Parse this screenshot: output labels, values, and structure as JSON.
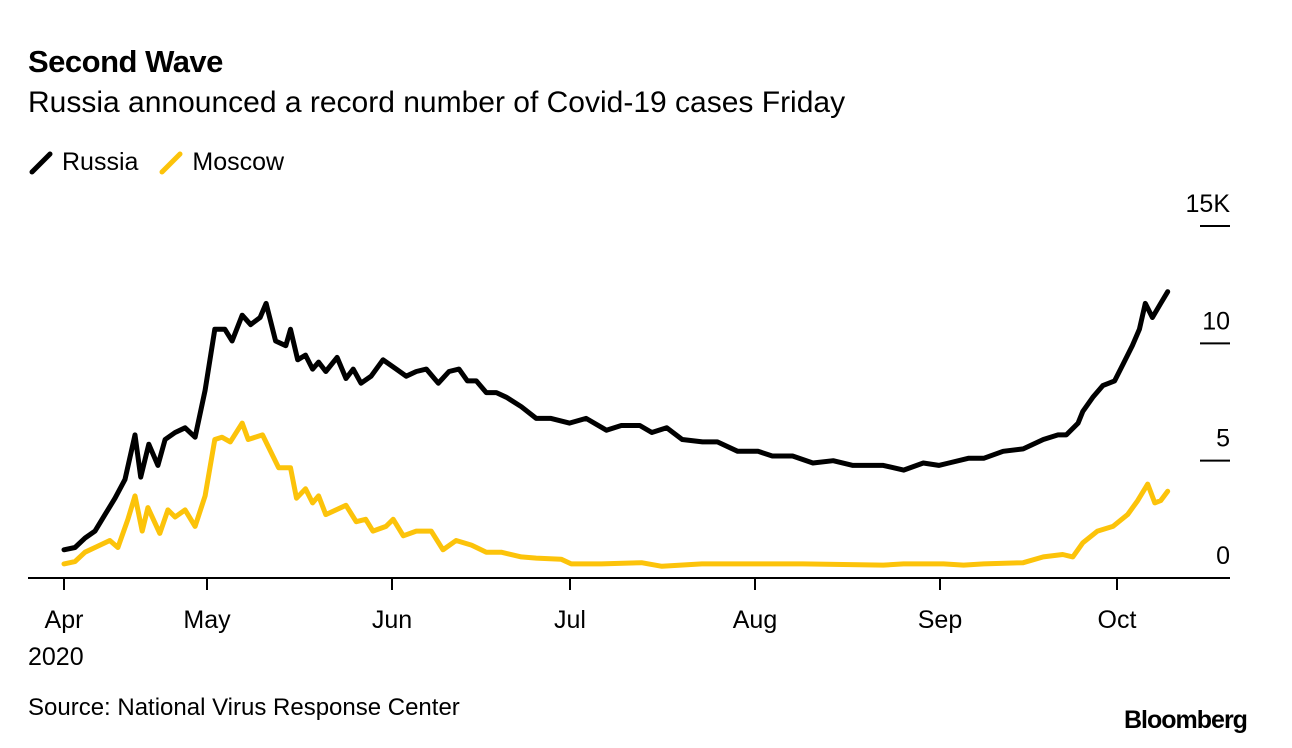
{
  "header": {
    "title": "Second Wave",
    "subtitle": "Russia announced a record number of Covid-19 cases Friday"
  },
  "footer": {
    "source": "Source: National Virus Response Center",
    "logo": "Bloomberg"
  },
  "colors": {
    "russia": "#000000",
    "moscow": "#fcc30a",
    "axis": "#000000"
  },
  "chart_data": {
    "type": "line",
    "title": "Second Wave",
    "subtitle": "Russia announced a record number of Covid-19 cases Friday",
    "x_unit": "days since Apr 1, 2020",
    "xlabel": "",
    "ylabel": "",
    "ylim": [
      0,
      15
    ],
    "y_ticks": [
      {
        "value": 15,
        "label": "15K"
      },
      {
        "value": 10,
        "label": "10"
      },
      {
        "value": 5,
        "label": "5"
      },
      {
        "value": 0,
        "label": "0"
      }
    ],
    "x_ticks": [
      {
        "day": 0,
        "label": "Apr",
        "sublabel": "2020"
      },
      {
        "day": 30,
        "label": "May"
      },
      {
        "day": 61,
        "label": "Jun"
      },
      {
        "day": 91,
        "label": "Jul"
      },
      {
        "day": 122,
        "label": "Aug"
      },
      {
        "day": 153,
        "label": "Sep"
      },
      {
        "day": 183,
        "label": "Oct"
      }
    ],
    "legend": {
      "position": "top-left"
    },
    "series": [
      {
        "name": "Russia",
        "color": "#000000",
        "points": [
          [
            0,
            1.2
          ],
          [
            2.3,
            1.3
          ],
          [
            4.4,
            1.7
          ],
          [
            6.5,
            2.0
          ],
          [
            8.6,
            2.7
          ],
          [
            10.7,
            3.4
          ],
          [
            12.8,
            4.2
          ],
          [
            14.9,
            6.1
          ],
          [
            16.1,
            4.3
          ],
          [
            17.8,
            5.7
          ],
          [
            19.7,
            4.8
          ],
          [
            21.2,
            5.9
          ],
          [
            23.3,
            6.2
          ],
          [
            25.4,
            6.4
          ],
          [
            27.5,
            6.0
          ],
          [
            29.6,
            8.0
          ],
          [
            31.3,
            10.6
          ],
          [
            33,
            10.6
          ],
          [
            34.2,
            10.1
          ],
          [
            35.9,
            11.2
          ],
          [
            37.3,
            10.8
          ],
          [
            38.9,
            11.1
          ],
          [
            39.9,
            11.7
          ],
          [
            41.5,
            10.1
          ],
          [
            43.2,
            9.9
          ],
          [
            44,
            10.6
          ],
          [
            45.2,
            9.3
          ],
          [
            46.5,
            9.5
          ],
          [
            47.7,
            8.9
          ],
          [
            48.7,
            9.2
          ],
          [
            49.9,
            8.8
          ],
          [
            51.8,
            9.4
          ],
          [
            53.3,
            8.5
          ],
          [
            54.5,
            8.9
          ],
          [
            55.8,
            8.3
          ],
          [
            57.5,
            8.6
          ],
          [
            59.5,
            9.3
          ],
          [
            61.7,
            8.9
          ],
          [
            63.4,
            8.6
          ],
          [
            65.1,
            8.8
          ],
          [
            66.8,
            8.9
          ],
          [
            68.8,
            8.3
          ],
          [
            70.6,
            8.8
          ],
          [
            72.3,
            8.9
          ],
          [
            73.7,
            8.4
          ],
          [
            75.2,
            8.4
          ],
          [
            76.9,
            7.9
          ],
          [
            78.6,
            7.9
          ],
          [
            80.3,
            7.7
          ],
          [
            82.8,
            7.3
          ],
          [
            85.3,
            6.8
          ],
          [
            87.8,
            6.8
          ],
          [
            90.9,
            6.6
          ],
          [
            93.7,
            6.8
          ],
          [
            97.1,
            6.3
          ],
          [
            99.6,
            6.5
          ],
          [
            102.7,
            6.5
          ],
          [
            104.7,
            6.2
          ],
          [
            107.2,
            6.4
          ],
          [
            109.8,
            5.9
          ],
          [
            113.2,
            5.8
          ],
          [
            115.7,
            5.8
          ],
          [
            119.1,
            5.4
          ],
          [
            122.5,
            5.4
          ],
          [
            124.9,
            5.2
          ],
          [
            128.3,
            5.2
          ],
          [
            131.7,
            4.9
          ],
          [
            135.1,
            5.0
          ],
          [
            138.4,
            4.8
          ],
          [
            140.1,
            4.8
          ],
          [
            143.5,
            4.8
          ],
          [
            146.9,
            4.6
          ],
          [
            150.2,
            4.9
          ],
          [
            152.8,
            4.8
          ],
          [
            154.5,
            4.9
          ],
          [
            157.8,
            5.1
          ],
          [
            160.4,
            5.1
          ],
          [
            163.7,
            5.4
          ],
          [
            167.1,
            5.5
          ],
          [
            170.5,
            5.9
          ],
          [
            173,
            6.1
          ],
          [
            174.4,
            6.1
          ],
          [
            176.4,
            6.6
          ],
          [
            177.2,
            7.1
          ],
          [
            178.9,
            7.7
          ],
          [
            180.6,
            8.2
          ],
          [
            182.6,
            8.4
          ],
          [
            184,
            9.1
          ],
          [
            185.6,
            9.9
          ],
          [
            186.8,
            10.6
          ],
          [
            187.8,
            11.7
          ],
          [
            189,
            11.1
          ],
          [
            190.4,
            11.7
          ],
          [
            191.6,
            12.2
          ]
        ]
      },
      {
        "name": "Moscow",
        "color": "#fcc30a",
        "points": [
          [
            0,
            0.6
          ],
          [
            2.3,
            0.7
          ],
          [
            4.4,
            1.1
          ],
          [
            6.5,
            1.3
          ],
          [
            9.6,
            1.6
          ],
          [
            11.3,
            1.3
          ],
          [
            13.4,
            2.5
          ],
          [
            14.9,
            3.5
          ],
          [
            16.4,
            2.0
          ],
          [
            17.6,
            3.0
          ],
          [
            20.1,
            1.9
          ],
          [
            21.8,
            2.9
          ],
          [
            23.3,
            2.6
          ],
          [
            25.4,
            2.9
          ],
          [
            27.5,
            2.2
          ],
          [
            29.6,
            3.5
          ],
          [
            31.3,
            5.9
          ],
          [
            32.5,
            6.0
          ],
          [
            33.9,
            5.8
          ],
          [
            35.9,
            6.6
          ],
          [
            36.9,
            5.9
          ],
          [
            39.3,
            6.1
          ],
          [
            42,
            4.7
          ],
          [
            44,
            4.7
          ],
          [
            45,
            3.4
          ],
          [
            46.5,
            3.8
          ],
          [
            47.7,
            3.2
          ],
          [
            48.7,
            3.5
          ],
          [
            49.9,
            2.7
          ],
          [
            53.3,
            3.1
          ],
          [
            55,
            2.4
          ],
          [
            56.6,
            2.5
          ],
          [
            57.8,
            2.0
          ],
          [
            60,
            2.2
          ],
          [
            61.2,
            2.5
          ],
          [
            62.9,
            1.8
          ],
          [
            65.1,
            2.0
          ],
          [
            67.6,
            2.0
          ],
          [
            69.6,
            1.2
          ],
          [
            71.8,
            1.6
          ],
          [
            74.4,
            1.4
          ],
          [
            76.9,
            1.1
          ],
          [
            79.4,
            1.1
          ],
          [
            82.8,
            0.9
          ],
          [
            85.3,
            0.85
          ],
          [
            89.5,
            0.8
          ],
          [
            91.2,
            0.6
          ],
          [
            96.3,
            0.6
          ],
          [
            103,
            0.65
          ],
          [
            106.4,
            0.5
          ],
          [
            113.1,
            0.6
          ],
          [
            130,
            0.6
          ],
          [
            143.5,
            0.55
          ],
          [
            146.9,
            0.6
          ],
          [
            153.6,
            0.6
          ],
          [
            157,
            0.55
          ],
          [
            160.4,
            0.6
          ],
          [
            167.1,
            0.65
          ],
          [
            170.5,
            0.9
          ],
          [
            173.8,
            1.0
          ],
          [
            175.5,
            0.9
          ],
          [
            177.2,
            1.5
          ],
          [
            179.7,
            2.0
          ],
          [
            182.3,
            2.2
          ],
          [
            184.8,
            2.7
          ],
          [
            186.5,
            3.3
          ],
          [
            188.2,
            4.0
          ],
          [
            189.4,
            3.2
          ],
          [
            190.4,
            3.3
          ],
          [
            191.6,
            3.7
          ]
        ]
      }
    ]
  }
}
